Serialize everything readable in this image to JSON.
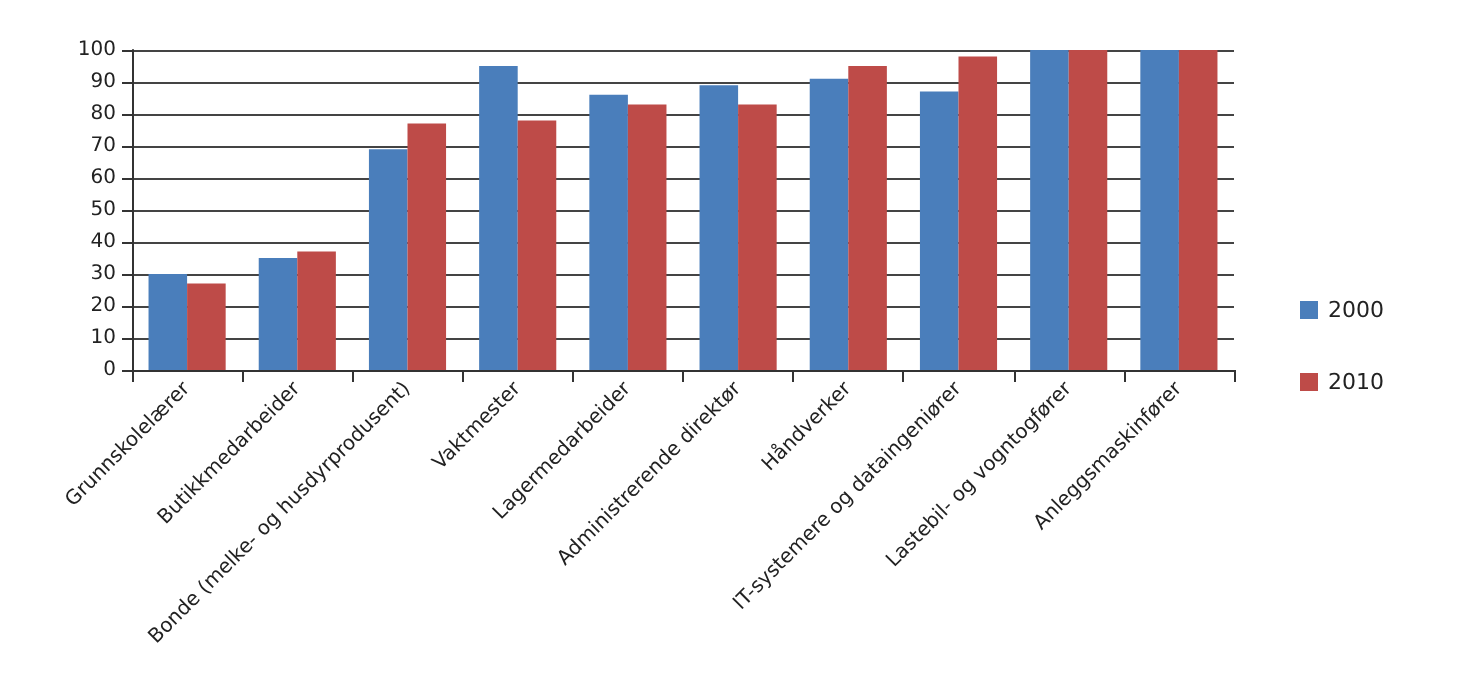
{
  "chart_data": {
    "type": "bar",
    "categories": [
      "Grunnskolelærer",
      "Butikkmedarbeider",
      "Bonde (melke- og husdyrprodusent)",
      "Vaktmester",
      "Lagermedarbeider",
      "Administrerende direktør",
      "Håndverker",
      "IT-systemere og dataingeniører",
      "Lastebil- og vogntogfører",
      "Anleggsmaskinfører"
    ],
    "series": [
      {
        "name": "2000",
        "color": "#4a7ebb",
        "values": [
          30,
          35,
          69,
          95,
          86,
          89,
          91,
          87,
          100,
          100
        ]
      },
      {
        "name": "2010",
        "color": "#be4b48",
        "values": [
          27,
          37,
          77,
          78,
          83,
          83,
          95,
          98,
          100,
          100
        ]
      }
    ],
    "ylim": [
      0,
      100
    ],
    "yticks": [
      0,
      10,
      20,
      30,
      40,
      50,
      60,
      70,
      80,
      90,
      100
    ],
    "grid": "y",
    "legend": "right"
  }
}
